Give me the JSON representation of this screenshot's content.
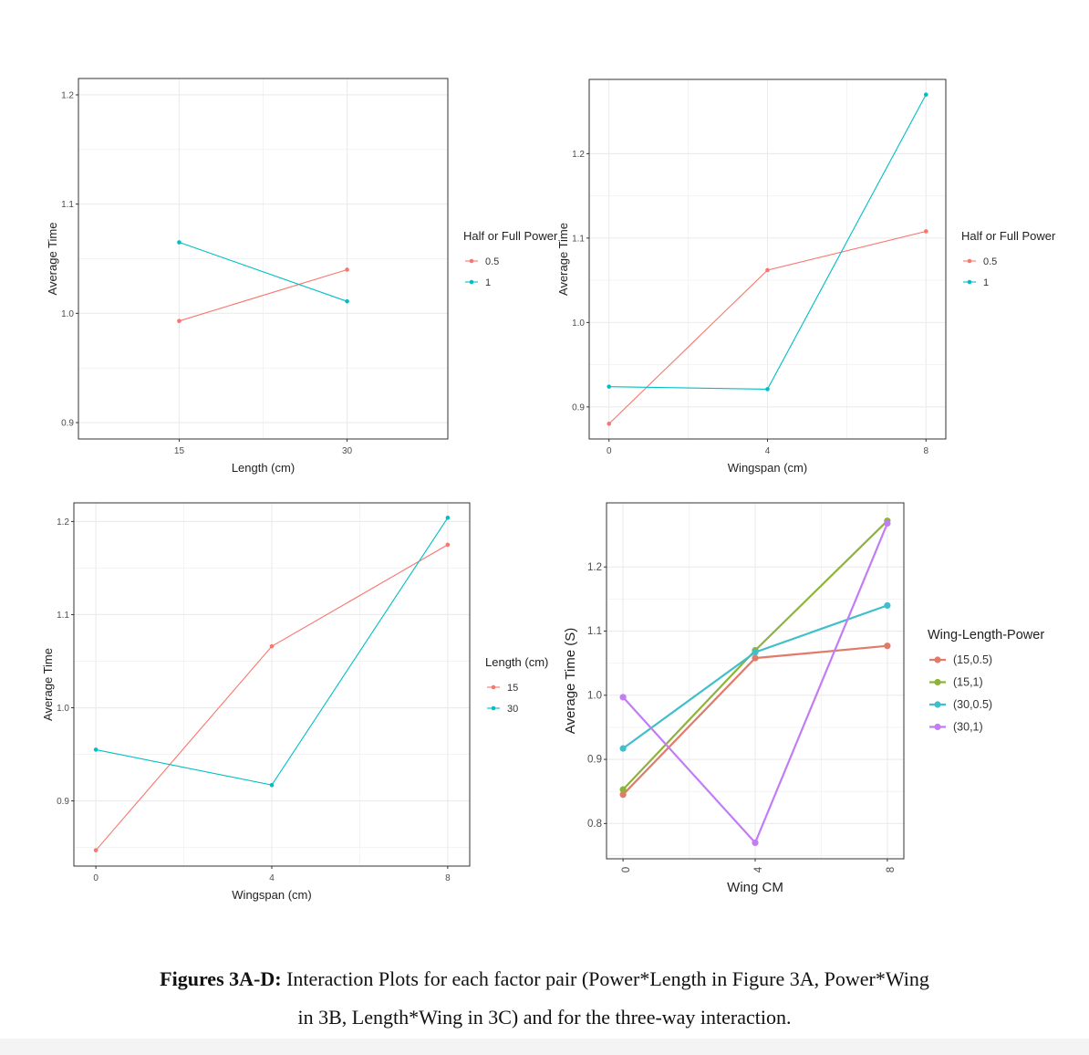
{
  "colors": {
    "red": "#F8766D",
    "teal": "#00BFC4",
    "red_d": "#E07B6A",
    "green_d": "#8DB33A",
    "teal_d": "#3FBFCB",
    "purple_d": "#C27CF5",
    "grid": "#EBEBEB",
    "axis_text": "#4D4D4D"
  },
  "caption": {
    "bold": "Figures 3A-D:",
    "line1_rest": " Interaction Plots for each factor pair (Power*Length in Figure 3A, Power*Wing",
    "line2": "in 3B, Length*Wing in 3C) and for the three-way interaction."
  },
  "chart_data": [
    {
      "type": "line",
      "xlabel": "Length (cm)",
      "ylabel": "Average Time",
      "x": [
        15,
        30
      ],
      "xticks": [
        15,
        30
      ],
      "xlim": [
        6,
        39
      ],
      "yticks": [
        0.9,
        1.0,
        1.1,
        1.2
      ],
      "ylim": [
        0.885,
        1.215
      ],
      "legend_title": "Half or Full Power",
      "series": [
        {
          "name": "0.5",
          "color": "#F8766D",
          "values": [
            0.993,
            1.04
          ]
        },
        {
          "name": "1",
          "color": "#00BFC4",
          "values": [
            1.065,
            1.011
          ]
        }
      ]
    },
    {
      "type": "line",
      "xlabel": "Wingspan (cm)",
      "ylabel": "Average Time",
      "x": [
        0,
        4,
        8
      ],
      "xticks": [
        0,
        4,
        8
      ],
      "xlim": [
        -0.5,
        8.5
      ],
      "yticks": [
        0.9,
        1.0,
        1.1,
        1.2
      ],
      "ylim": [
        0.862,
        1.288
      ],
      "legend_title": "Half or Full Power",
      "series": [
        {
          "name": "0.5",
          "color": "#F8766D",
          "values": [
            0.88,
            1.062,
            1.108
          ]
        },
        {
          "name": "1",
          "color": "#00BFC4",
          "values": [
            0.924,
            0.921,
            1.27
          ]
        }
      ]
    },
    {
      "type": "line",
      "xlabel": "Wingspan (cm)",
      "ylabel": "Average Time",
      "x": [
        0,
        4,
        8
      ],
      "xticks": [
        0,
        4,
        8
      ],
      "xlim": [
        -0.5,
        8.5
      ],
      "yticks": [
        0.9,
        1.0,
        1.1,
        1.2
      ],
      "ylim": [
        0.83,
        1.22
      ],
      "legend_title": "Length (cm)",
      "series": [
        {
          "name": "15",
          "color": "#F8766D",
          "values": [
            0.847,
            1.066,
            1.175
          ]
        },
        {
          "name": "30",
          "color": "#00BFC4",
          "values": [
            0.955,
            0.917,
            1.204
          ]
        }
      ]
    },
    {
      "type": "line",
      "xlabel": "Wing CM",
      "ylabel": "Average Time (S)",
      "x": [
        0,
        4,
        8
      ],
      "xticks": [
        0,
        4,
        8
      ],
      "xlim": [
        -0.5,
        8.5
      ],
      "yticks": [
        0.8,
        0.9,
        1.0,
        1.1,
        1.2
      ],
      "ylim": [
        0.745,
        1.3
      ],
      "legend_title": "Wing-Length-Power",
      "series": [
        {
          "name": "(15,0.5)",
          "color": "#E07B6A",
          "values": [
            0.845,
            1.058,
            1.077
          ]
        },
        {
          "name": "(15,1)",
          "color": "#8DB33A",
          "values": [
            0.853,
            1.07,
            1.272
          ]
        },
        {
          "name": "(30,0.5)",
          "color": "#3FBFCB",
          "values": [
            0.917,
            1.067,
            1.14
          ]
        },
        {
          "name": "(30,1)",
          "color": "#C27CF5",
          "values": [
            0.997,
            0.77,
            1.268
          ]
        }
      ]
    }
  ]
}
